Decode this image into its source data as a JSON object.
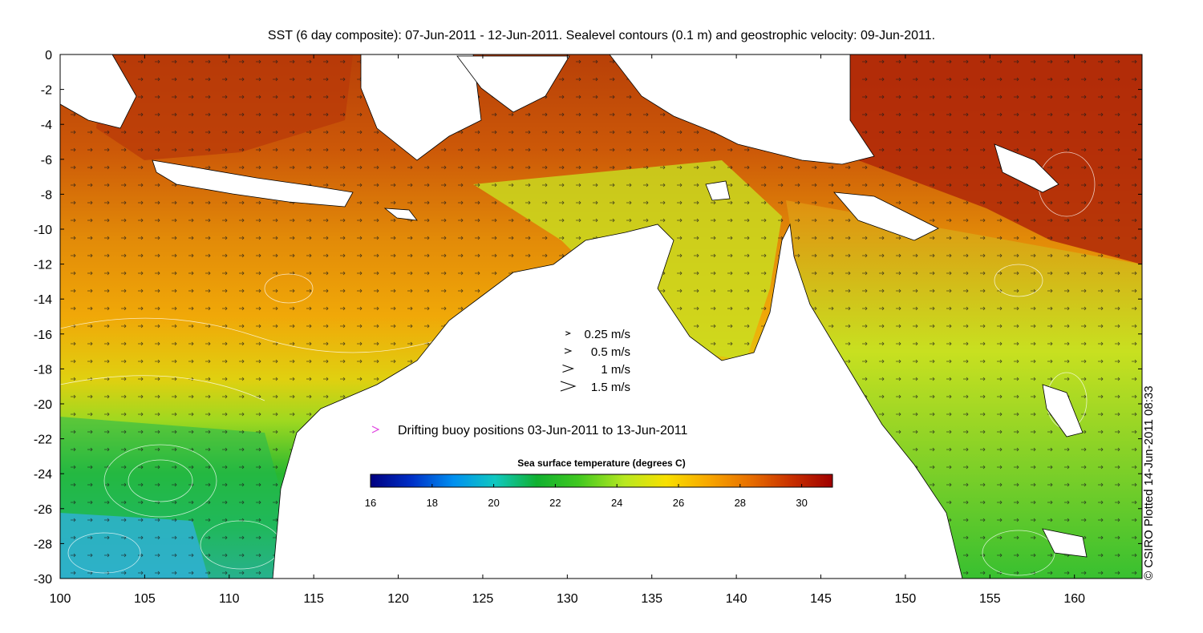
{
  "title": "SST (6 day composite): 07-Jun-2011 - 12-Jun-2011. Sealevel contours (0.1 m) and geostrophic velocity: 09-Jun-2011.",
  "credit": "© CSIRO Plotted 14-Jun-2011 08:33",
  "chart_data": {
    "type": "heatmap",
    "x_axis": {
      "range": [
        100,
        164
      ],
      "ticks": [
        "100",
        "105",
        "110",
        "115",
        "120",
        "125",
        "130",
        "135",
        "140",
        "145",
        "150",
        "155",
        "160"
      ]
    },
    "y_axis": {
      "range": [
        -30,
        0
      ],
      "ticks": [
        "0",
        "-2",
        "-4",
        "-6",
        "-8",
        "-10",
        "-12",
        "-14",
        "-16",
        "-18",
        "-20",
        "-22",
        "-24",
        "-26",
        "-28",
        "-30"
      ]
    },
    "velocity_legend": [
      {
        "label": "0.25 m/s",
        "speed": 0.25
      },
      {
        "label": "0.5 m/s",
        "speed": 0.5
      },
      {
        "label": "1 m/s",
        "speed": 1
      },
      {
        "label": "1.5 m/s",
        "speed": 1.5
      }
    ],
    "buoy_legend": {
      "label": "Drifting buoy positions 03-Jun-2011 to 13-Jun-2011",
      "color": "#e040e0"
    },
    "colorbar": {
      "title": "Sea surface temperature (degrees C)",
      "range": [
        16,
        31
      ],
      "ticks": [
        "16",
        "18",
        "20",
        "22",
        "24",
        "26",
        "28",
        "30"
      ],
      "colors": [
        "#000080",
        "#0030c8",
        "#0090f0",
        "#10c8c0",
        "#10b030",
        "#40c820",
        "#b8e820",
        "#f8e000",
        "#f8a800",
        "#e87000",
        "#c83000",
        "#a00000"
      ]
    }
  }
}
